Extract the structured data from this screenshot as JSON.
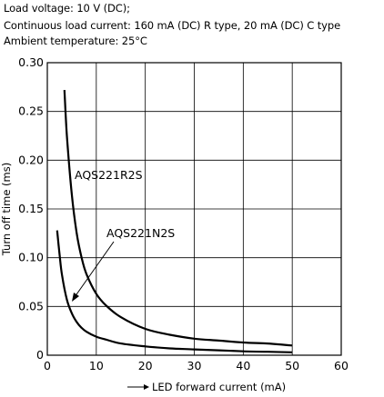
{
  "notes": [
    "Load voltage: 10 V (DC);",
    "Continuous load current: 160 mA (DC) R type, 20 mA (DC) C type",
    "Ambient temperature: 25°C"
  ],
  "chart_data": {
    "type": "line",
    "xlabel": "LED forward current (mA)",
    "ylabel": "Turn off time (ms)",
    "xlim": [
      0,
      60
    ],
    "ylim": [
      0,
      0.3
    ],
    "x_ticks": [
      "0",
      "10",
      "20",
      "30",
      "40",
      "50",
      "60"
    ],
    "y_ticks": [
      "0",
      "0.05",
      "0.10",
      "0.15",
      "0.20",
      "0.25",
      "0.30"
    ],
    "grid": true,
    "series": [
      {
        "name": "AQS221R2S",
        "x": [
          3.5,
          4,
          5,
          6,
          7,
          8,
          10,
          12,
          15,
          20,
          25,
          30,
          35,
          40,
          45,
          50
        ],
        "y": [
          0.272,
          0.225,
          0.165,
          0.125,
          0.1,
          0.083,
          0.063,
          0.051,
          0.039,
          0.027,
          0.021,
          0.017,
          0.015,
          0.013,
          0.012,
          0.01
        ]
      },
      {
        "name": "AQS221N2S",
        "x": [
          2,
          2.5,
          3,
          4,
          5,
          6,
          7,
          8,
          10,
          12,
          15,
          20,
          25,
          30,
          35,
          40,
          45,
          50
        ],
        "y": [
          0.128,
          0.103,
          0.082,
          0.057,
          0.043,
          0.034,
          0.028,
          0.024,
          0.019,
          0.016,
          0.012,
          0.009,
          0.007,
          0.006,
          0.005,
          0.004,
          0.0035,
          0.003
        ]
      }
    ]
  }
}
